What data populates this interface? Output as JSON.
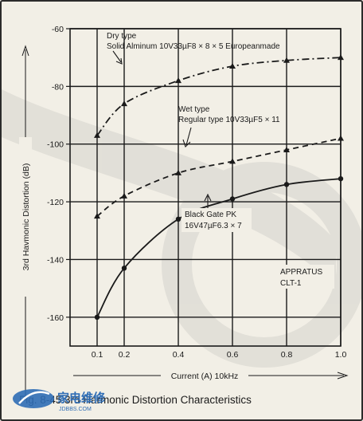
{
  "chart_data": {
    "type": "line",
    "caption": "Fig. 8-45  3rd Harmonic Distortion Characteristics",
    "xlabel": "Current (A) 10kHz",
    "ylabel": "3rd Havmonic Distortion (dB)",
    "x_ticks": [
      0.1,
      0.2,
      0.4,
      0.6,
      0.8,
      1.0
    ],
    "x_tick_labels": [
      "0.1",
      "0.2",
      "0.4",
      "0.6",
      "0.8",
      "1.0"
    ],
    "y_ticks": [
      -60,
      -80,
      -100,
      -120,
      -140,
      -160
    ],
    "y_tick_labels": [
      "-60",
      "-80",
      "-100",
      "-120",
      "-140",
      "-160"
    ],
    "xlim": [
      0.0,
      1.0
    ],
    "ylim": [
      -170,
      -60
    ],
    "grid": true,
    "series": [
      {
        "name": "Dry type",
        "style": "dash-dot",
        "x": [
          0.1,
          0.2,
          0.4,
          0.6,
          0.8,
          1.0
        ],
        "y": [
          -97,
          -86,
          -78,
          -73,
          -71,
          -70
        ],
        "annotation": [
          "Dry type",
          "Solid Alminum 10V33µF8 × 8 × 5 Europeanmade"
        ]
      },
      {
        "name": "Wet type",
        "style": "dashed",
        "x": [
          0.1,
          0.2,
          0.4,
          0.6,
          0.8,
          1.0
        ],
        "y": [
          -125,
          -118,
          -110,
          -106,
          -102,
          -98
        ],
        "annotation": [
          "Wet type",
          "Regular type 10V33µF5 × 11"
        ]
      },
      {
        "name": "Black Gate PK",
        "style": "solid",
        "x": [
          0.1,
          0.2,
          0.4,
          0.6,
          0.8,
          1.0
        ],
        "y": [
          -160,
          -143,
          -126,
          -119,
          -114,
          -112
        ],
        "annotation": [
          "Black Gate PK",
          "16V47µF6.3 × 7"
        ]
      }
    ],
    "note": [
      "APPRATUS",
      "CLT-1"
    ],
    "watermark": "家电维修 JDBBS.COM"
  },
  "colors": {
    "background": "#f2efe6",
    "ink": "#1a1a1a",
    "watermark_blue": "#2f6db5"
  }
}
